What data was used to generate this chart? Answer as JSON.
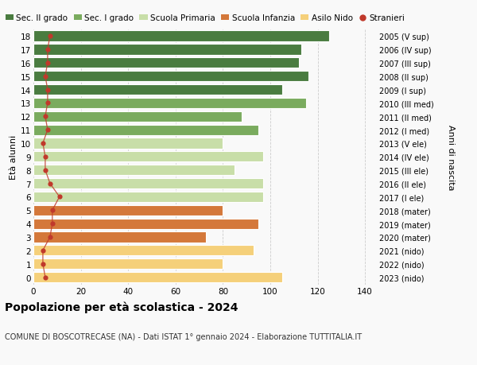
{
  "ages": [
    18,
    17,
    16,
    15,
    14,
    13,
    12,
    11,
    10,
    9,
    8,
    7,
    6,
    5,
    4,
    3,
    2,
    1,
    0
  ],
  "values": [
    125,
    113,
    112,
    116,
    105,
    115,
    88,
    95,
    80,
    97,
    85,
    97,
    97,
    80,
    95,
    73,
    93,
    80,
    105
  ],
  "stranieri": [
    7,
    6,
    6,
    5,
    6,
    6,
    5,
    6,
    4,
    5,
    5,
    7,
    11,
    8,
    8,
    7,
    4,
    4,
    5
  ],
  "right_labels": [
    "2005 (V sup)",
    "2006 (IV sup)",
    "2007 (III sup)",
    "2008 (II sup)",
    "2009 (I sup)",
    "2010 (III med)",
    "2011 (II med)",
    "2012 (I med)",
    "2013 (V ele)",
    "2014 (IV ele)",
    "2015 (III ele)",
    "2016 (II ele)",
    "2017 (I ele)",
    "2018 (mater)",
    "2019 (mater)",
    "2020 (mater)",
    "2021 (nido)",
    "2022 (nido)",
    "2023 (nido)"
  ],
  "bar_colors": [
    "#4a7c40",
    "#4a7c40",
    "#4a7c40",
    "#4a7c40",
    "#4a7c40",
    "#7aab5e",
    "#7aab5e",
    "#7aab5e",
    "#c8dea8",
    "#c8dea8",
    "#c8dea8",
    "#c8dea8",
    "#c8dea8",
    "#d4783a",
    "#d4783a",
    "#d4783a",
    "#f5d07a",
    "#f5d07a",
    "#f5d07a"
  ],
  "legend_labels": [
    "Sec. II grado",
    "Sec. I grado",
    "Scuola Primaria",
    "Scuola Infanzia",
    "Asilo Nido",
    "Stranieri"
  ],
  "legend_colors": [
    "#4a7c40",
    "#7aab5e",
    "#c8dea8",
    "#d4783a",
    "#f5d07a",
    "#c0392b"
  ],
  "title": "Popolazione per età scolastica - 2024",
  "subtitle": "COMUNE DI BOSCOTRECASE (NA) - Dati ISTAT 1° gennaio 2024 - Elaborazione TUTTITALIA.IT",
  "ylabel_left": "Età alunni",
  "ylabel_right": "Anni di nascita",
  "xlim": [
    0,
    145
  ],
  "xticks": [
    0,
    20,
    40,
    60,
    80,
    100,
    120,
    140
  ],
  "background_color": "#f9f9f9",
  "stranieri_color": "#c0392b"
}
